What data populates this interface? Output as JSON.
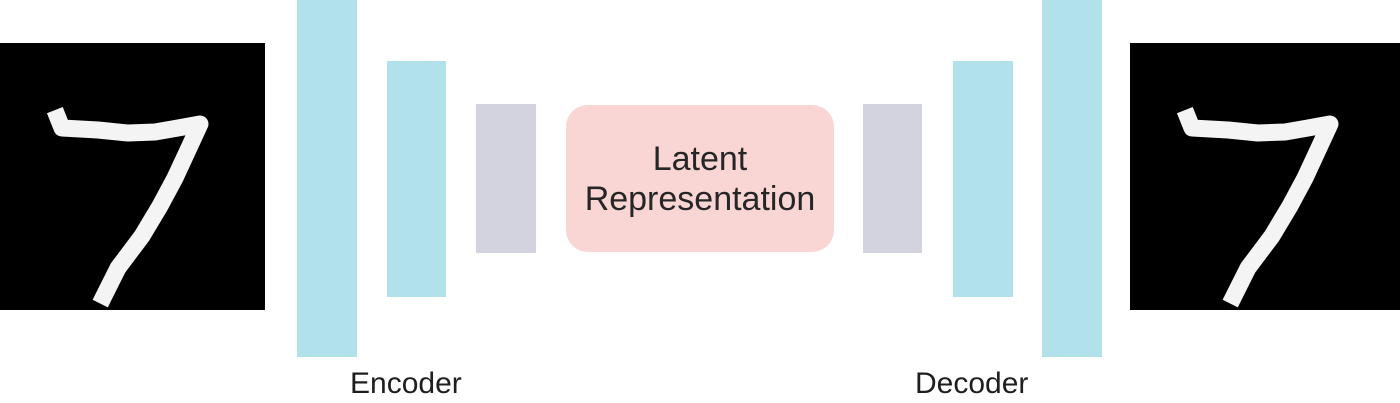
{
  "colors": {
    "outer_layer": "#b1e1ea",
    "inner_layer": "#d2d3df",
    "latent_fill": "#f9d6d3",
    "image_background": "#000000",
    "digit_stroke": "#f4f4f4"
  },
  "input_image": {
    "icon": "handwritten-digit-7-icon"
  },
  "output_image": {
    "icon": "handwritten-digit-7-icon"
  },
  "latent": {
    "label": "Latent\nRepresentation"
  },
  "encoder": {
    "label": "Encoder"
  },
  "decoder": {
    "label": "Decoder"
  }
}
